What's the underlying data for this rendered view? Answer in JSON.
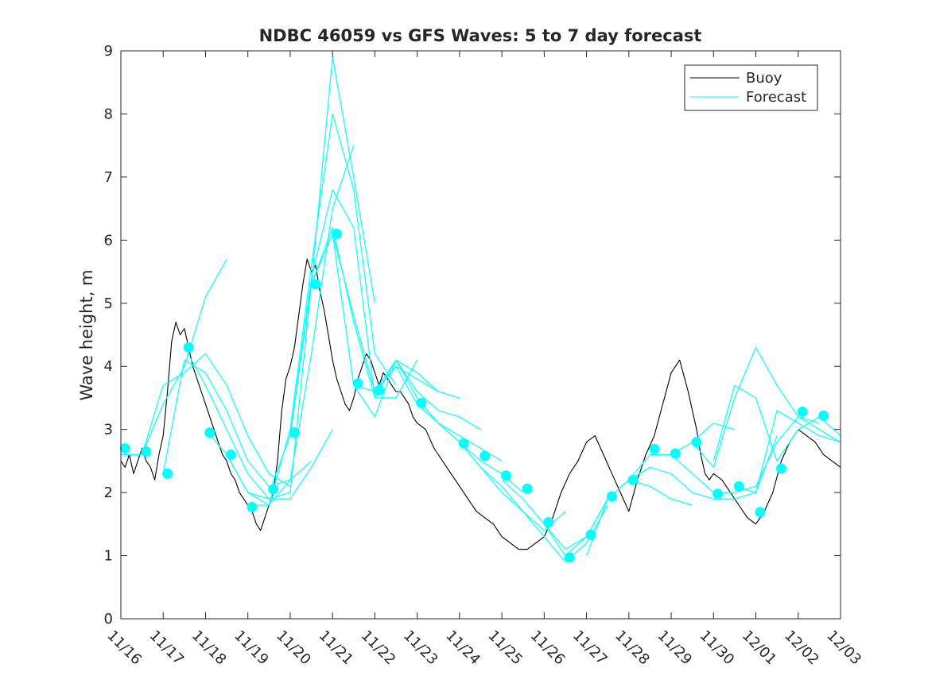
{
  "chart_data": {
    "type": "line",
    "title": "NDBC 46059 vs GFS Waves: 5 to 7 day forecast",
    "xlabel": "",
    "ylabel": "Wave height, m",
    "xlim": [
      0,
      17
    ],
    "ylim": [
      0,
      9
    ],
    "yticks": [
      0,
      1,
      2,
      3,
      4,
      5,
      6,
      7,
      8,
      9
    ],
    "xtick_labels": [
      "11/16",
      "11/17",
      "11/18",
      "11/19",
      "11/20",
      "11/21",
      "11/22",
      "11/23",
      "11/24",
      "11/25",
      "11/26",
      "11/27",
      "11/28",
      "11/29",
      "11/30",
      "12/01",
      "12/02",
      "12/03"
    ],
    "grid": false,
    "legend": {
      "location": "top-right",
      "entries": [
        "Buoy",
        "Forecast"
      ]
    },
    "colors": {
      "buoy": "#000000",
      "forecast": "#00ffff",
      "axes": "#262626"
    },
    "series": [
      {
        "name": "Buoy",
        "x": [
          0,
          0.1,
          0.2,
          0.3,
          0.4,
          0.5,
          0.6,
          0.7,
          0.8,
          0.9,
          1.0,
          1.1,
          1.2,
          1.3,
          1.4,
          1.5,
          1.6,
          1.7,
          1.8,
          1.9,
          2.0,
          2.1,
          2.2,
          2.3,
          2.4,
          2.5,
          2.6,
          2.7,
          2.8,
          2.9,
          3.0,
          3.1,
          3.2,
          3.3,
          3.4,
          3.5,
          3.6,
          3.7,
          3.8,
          3.9,
          4.0,
          4.1,
          4.2,
          4.3,
          4.4,
          4.5,
          4.6,
          4.7,
          4.8,
          4.9,
          5.0,
          5.1,
          5.2,
          5.3,
          5.4,
          5.5,
          5.6,
          5.7,
          5.8,
          5.9,
          6.0,
          6.1,
          6.2,
          6.3,
          6.4,
          6.5,
          6.6,
          6.7,
          6.8,
          6.9,
          7.0,
          7.2,
          7.4,
          7.6,
          7.8,
          8.0,
          8.2,
          8.4,
          8.6,
          8.8,
          9.0,
          9.2,
          9.4,
          9.6,
          9.8,
          10.0,
          10.2,
          10.4,
          10.6,
          10.8,
          11.0,
          11.2,
          11.4,
          11.6,
          11.8,
          12.0,
          12.2,
          12.4,
          12.6,
          12.8,
          13.0,
          13.2,
          13.4,
          13.6,
          13.7,
          13.8,
          13.9,
          14.0,
          14.2,
          14.4,
          14.6,
          14.8,
          15.0,
          15.2,
          15.4,
          15.6,
          15.8,
          16.0,
          16.2,
          16.4,
          16.6,
          16.8,
          17.0
        ],
        "values": [
          2.5,
          2.4,
          2.6,
          2.3,
          2.5,
          2.7,
          2.5,
          2.4,
          2.2,
          2.6,
          2.9,
          3.6,
          4.4,
          4.7,
          4.5,
          4.6,
          4.3,
          4.0,
          3.8,
          3.6,
          3.4,
          3.2,
          3.0,
          2.8,
          2.6,
          2.5,
          2.3,
          2.2,
          2.0,
          1.9,
          1.8,
          1.7,
          1.5,
          1.4,
          1.6,
          1.8,
          2.0,
          2.5,
          3.3,
          3.8,
          4.0,
          4.3,
          4.8,
          5.3,
          5.7,
          5.5,
          5.6,
          5.2,
          4.9,
          4.5,
          4.1,
          3.8,
          3.6,
          3.4,
          3.3,
          3.5,
          3.8,
          4.0,
          4.2,
          4.1,
          3.9,
          3.7,
          3.9,
          3.8,
          3.7,
          3.6,
          3.6,
          3.5,
          3.4,
          3.2,
          3.1,
          3.0,
          2.7,
          2.5,
          2.3,
          2.1,
          1.9,
          1.7,
          1.6,
          1.5,
          1.3,
          1.2,
          1.1,
          1.1,
          1.2,
          1.3,
          1.6,
          2.0,
          2.3,
          2.5,
          2.8,
          2.9,
          2.6,
          2.3,
          2.0,
          1.7,
          2.2,
          2.6,
          2.9,
          3.4,
          3.9,
          4.1,
          3.6,
          3.0,
          2.6,
          2.3,
          2.2,
          2.3,
          2.2,
          2.0,
          1.8,
          1.6,
          1.5,
          1.7,
          2.0,
          2.5,
          2.8,
          3.0,
          2.9,
          2.8,
          2.6,
          2.5,
          2.4
        ],
        "color": "#000000"
      },
      {
        "name": "Forecast run 1",
        "x": [
          0,
          0.5,
          1.0,
          1.5,
          2.0,
          2.5
        ],
        "values": [
          2.6,
          2.6,
          3.4,
          4.0,
          5.1,
          5.7
        ]
      },
      {
        "name": "Forecast run 2",
        "x": [
          0.5,
          1.0,
          1.5,
          2.0,
          2.5,
          3.0,
          3.5,
          4.0
        ],
        "values": [
          2.6,
          3.7,
          3.9,
          4.2,
          3.7,
          2.9,
          2.3,
          2.1
        ]
      },
      {
        "name": "Forecast run 3",
        "x": [
          1.0,
          1.5,
          2.0,
          2.5,
          3.0,
          3.5,
          4.0,
          4.5
        ],
        "values": [
          2.3,
          4.1,
          3.9,
          3.3,
          2.5,
          2.1,
          2.2,
          2.5
        ]
      },
      {
        "name": "Forecast run 4",
        "x": [
          1.5,
          2.0,
          2.5,
          3.0,
          3.5,
          4.0,
          4.5,
          5.0
        ],
        "values": [
          4.3,
          3.7,
          3.0,
          2.3,
          1.9,
          1.9,
          2.4,
          3.0
        ]
      },
      {
        "name": "Forecast run 5",
        "x": [
          2.0,
          2.5,
          3.0,
          3.5,
          4.0,
          4.5,
          5.0,
          5.5
        ],
        "values": [
          3.0,
          2.6,
          2.0,
          1.8,
          2.2,
          4.2,
          6.5,
          7.5
        ]
      },
      {
        "name": "Forecast run 6",
        "x": [
          2.5,
          3.0,
          3.5,
          4.0,
          4.5,
          5.0,
          5.5,
          6.0
        ],
        "values": [
          2.6,
          2.0,
          1.9,
          2.0,
          5.3,
          8.9,
          7.0,
          5.0
        ]
      },
      {
        "name": "Forecast run 7",
        "x": [
          3.0,
          3.5,
          4.0,
          4.5,
          5.0,
          5.5,
          6.0,
          6.5
        ],
        "values": [
          1.8,
          1.8,
          3.0,
          5.6,
          8.0,
          6.8,
          4.2,
          3.7
        ]
      },
      {
        "name": "Forecast run 8",
        "x": [
          3.5,
          4.0,
          4.5,
          5.0,
          5.5,
          6.0,
          6.5,
          7.0
        ],
        "values": [
          2.0,
          2.9,
          5.4,
          6.8,
          6.2,
          3.5,
          3.5,
          4.1
        ]
      },
      {
        "name": "Forecast run 9",
        "x": [
          4.0,
          4.5,
          5.0,
          5.5,
          6.0,
          6.5,
          7.0,
          7.5
        ],
        "values": [
          2.9,
          5.3,
          6.2,
          4.7,
          3.5,
          4.1,
          3.9,
          3.6
        ]
      },
      {
        "name": "Forecast run 10",
        "x": [
          4.5,
          5.0,
          5.5,
          6.0,
          6.5,
          7.0,
          7.5,
          8.0
        ],
        "values": [
          5.3,
          6.1,
          4.8,
          3.6,
          4.0,
          3.8,
          3.6,
          3.5
        ]
      },
      {
        "name": "Forecast run 11",
        "x": [
          5.0,
          5.5,
          6.0,
          6.5,
          7.0,
          7.5,
          8.0,
          8.5
        ],
        "values": [
          6.1,
          3.7,
          3.2,
          4.1,
          3.6,
          3.3,
          3.2,
          3.0
        ]
      },
      {
        "name": "Forecast run 12",
        "x": [
          5.5,
          6.0,
          6.5,
          7.0,
          7.5,
          8.0,
          8.5,
          9.0
        ],
        "values": [
          3.7,
          3.6,
          4.0,
          3.4,
          3.1,
          2.9,
          2.7,
          2.5
        ]
      },
      {
        "name": "Forecast run 13",
        "x": [
          6.0,
          6.5,
          7.0,
          7.5,
          8.0,
          8.5,
          9.0,
          9.5
        ],
        "values": [
          3.6,
          4.1,
          3.5,
          3.1,
          2.8,
          2.5,
          2.3,
          2.0
        ]
      },
      {
        "name": "Forecast run 14",
        "x": [
          7.0,
          7.5,
          8.0,
          8.5,
          9.0,
          9.5,
          10.0,
          10.5
        ],
        "values": [
          3.4,
          3.1,
          2.8,
          2.4,
          2.0,
          1.7,
          1.4,
          1.7
        ]
      },
      {
        "name": "Forecast run 15",
        "x": [
          8.0,
          8.5,
          9.0,
          9.5,
          10.0,
          10.5,
          11.0,
          11.5
        ],
        "values": [
          2.8,
          2.4,
          2.1,
          1.7,
          1.3,
          0.9,
          1.2,
          1.8
        ]
      },
      {
        "name": "Forecast run 16",
        "x": [
          9.0,
          9.5,
          10.0,
          10.5,
          11.0,
          11.5,
          12.0,
          12.5
        ],
        "values": [
          2.2,
          1.9,
          1.5,
          1.0,
          1.3,
          1.9,
          2.2,
          2.4
        ]
      },
      {
        "name": "Forecast run 17",
        "x": [
          10.0,
          10.5,
          11.0,
          11.5,
          12.0,
          12.5,
          13.0,
          13.5
        ],
        "values": [
          1.5,
          1.1,
          1.3,
          1.9,
          2.2,
          2.1,
          1.9,
          1.8
        ]
      },
      {
        "name": "Forecast run 18",
        "x": [
          11.0,
          11.5,
          12.0,
          12.5,
          13.0,
          13.5,
          14.0,
          14.5
        ],
        "values": [
          1.0,
          1.9,
          2.2,
          2.6,
          2.6,
          2.8,
          3.1,
          3.0
        ]
      },
      {
        "name": "Forecast run 19",
        "x": [
          12.0,
          12.5,
          13.0,
          13.5,
          14.0,
          14.5,
          15.0,
          15.5
        ],
        "values": [
          2.2,
          2.4,
          2.3,
          2.0,
          1.9,
          1.9,
          2.0,
          2.9
        ]
      },
      {
        "name": "Forecast run 20",
        "x": [
          13.0,
          13.5,
          14.0,
          14.5,
          15.0,
          15.5,
          16.0,
          16.5
        ],
        "values": [
          2.6,
          2.3,
          2.0,
          2.0,
          2.1,
          2.8,
          3.2,
          3.1
        ]
      },
      {
        "name": "Forecast run 21",
        "x": [
          13.5,
          14.0,
          14.5,
          15.0,
          15.5,
          16.0,
          16.5,
          17.0
        ],
        "values": [
          2.8,
          2.4,
          3.5,
          4.3,
          3.7,
          3.2,
          3.0,
          2.8
        ]
      },
      {
        "name": "Forecast run 22",
        "x": [
          14.0,
          14.5,
          15.0,
          15.5,
          16.0,
          16.5,
          17.0
        ],
        "values": [
          2.5,
          3.7,
          3.5,
          2.5,
          3.0,
          3.2,
          2.9
        ]
      },
      {
        "name": "Forecast run 23",
        "x": [
          14.5,
          15.0,
          15.5,
          16.0,
          16.5,
          17.0
        ],
        "values": [
          2.1,
          2.0,
          3.3,
          3.1,
          2.9,
          2.8
        ]
      }
    ],
    "forecast_markers": {
      "name": "Forecast start points",
      "x": [
        0.1,
        0.6,
        1.1,
        1.6,
        2.1,
        2.6,
        3.1,
        3.6,
        4.1,
        4.6,
        5.1,
        5.6,
        6.1,
        7.1,
        8.1,
        8.6,
        9.1,
        9.6,
        10.1,
        10.6,
        11.1,
        11.6,
        12.1,
        12.6,
        13.1,
        13.6,
        14.1,
        14.6,
        15.1,
        15.6,
        16.1,
        16.6
      ],
      "values": [
        2.7,
        2.65,
        2.3,
        4.3,
        2.95,
        2.6,
        1.77,
        2.05,
        2.95,
        5.3,
        6.1,
        3.73,
        3.62,
        3.42,
        2.78,
        2.58,
        2.27,
        2.06,
        1.53,
        0.97,
        1.33,
        1.94,
        2.2,
        2.69,
        2.62,
        2.8,
        1.98,
        2.1,
        1.69,
        2.38,
        3.28,
        3.22
      ]
    }
  }
}
